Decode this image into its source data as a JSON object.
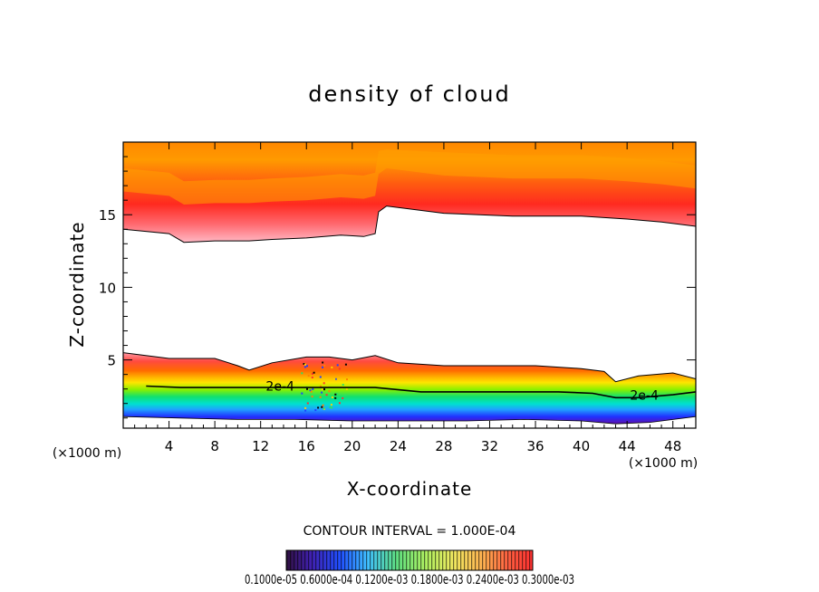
{
  "chart_data": {
    "type": "heatmap",
    "title": "density of cloud",
    "xlabel": "X-coordinate",
    "ylabel": "Z-coordinate",
    "x_unit": "(×1000 m)",
    "y_unit": "(×1000 m)",
    "xlim": [
      0,
      50
    ],
    "ylim": [
      0.3,
      20
    ],
    "x_ticks": [
      4,
      8,
      12,
      16,
      20,
      24,
      28,
      32,
      36,
      40,
      44,
      48
    ],
    "y_ticks": [
      5,
      10,
      15
    ],
    "contour_interval_label": "CONTOUR INTERVAL = 1.000E-04",
    "contour_labels": [
      {
        "text": "2e-4",
        "x": 13.7,
        "z": 3.0
      },
      {
        "text": "2e-4",
        "x": 45.5,
        "z": 2.4
      }
    ],
    "colorbar": {
      "tick_labels_text": "0.1000e-05 0.6000e-04 0.1200e-03 0.1800e-03 0.2400e-03 0.3000e-03",
      "range": [
        1e-06,
        0.0003
      ]
    },
    "upper_cloud_base_profile": [
      [
        0,
        14.0
      ],
      [
        4,
        13.7
      ],
      [
        5.3,
        13.1
      ],
      [
        8,
        13.2
      ],
      [
        11,
        13.2
      ],
      [
        13,
        13.3
      ],
      [
        16,
        13.4
      ],
      [
        19,
        13.6
      ],
      [
        21,
        13.5
      ],
      [
        22,
        13.7
      ],
      [
        22.3,
        15.2
      ],
      [
        23,
        15.6
      ],
      [
        28,
        15.1
      ],
      [
        34,
        14.9
      ],
      [
        40,
        14.9
      ],
      [
        44,
        14.7
      ],
      [
        47,
        14.5
      ],
      [
        50,
        14.2
      ]
    ],
    "lower_cloud_top_profile": [
      [
        0,
        5.5
      ],
      [
        4,
        5.1
      ],
      [
        8,
        5.1
      ],
      [
        10,
        4.6
      ],
      [
        11,
        4.3
      ],
      [
        13,
        4.8
      ],
      [
        16,
        5.2
      ],
      [
        18,
        5.2
      ],
      [
        20,
        5.0
      ],
      [
        22,
        5.3
      ],
      [
        24,
        4.8
      ],
      [
        28,
        4.6
      ],
      [
        32,
        4.6
      ],
      [
        36,
        4.6
      ],
      [
        40,
        4.4
      ],
      [
        42,
        4.2
      ],
      [
        43,
        3.5
      ],
      [
        45,
        3.9
      ],
      [
        48,
        4.1
      ],
      [
        50,
        3.7
      ]
    ],
    "contour_2e4_profile": [
      [
        2,
        3.2
      ],
      [
        5,
        3.1
      ],
      [
        10,
        3.1
      ],
      [
        14,
        3.1
      ],
      [
        18,
        3.1
      ],
      [
        22,
        3.1
      ],
      [
        26,
        2.8
      ],
      [
        30,
        2.8
      ],
      [
        34,
        2.8
      ],
      [
        38,
        2.8
      ],
      [
        41,
        2.7
      ],
      [
        43,
        2.4
      ],
      [
        45,
        2.4
      ],
      [
        48,
        2.6
      ],
      [
        50,
        2.8
      ]
    ],
    "lower_cloud_base_profile": [
      [
        0,
        1.1
      ],
      [
        5,
        1.0
      ],
      [
        10,
        0.9
      ],
      [
        15,
        0.9
      ],
      [
        20,
        0.8
      ],
      [
        25,
        0.8
      ],
      [
        30,
        0.8
      ],
      [
        35,
        0.9
      ],
      [
        40,
        0.8
      ],
      [
        43,
        0.6
      ],
      [
        46,
        0.7
      ],
      [
        50,
        1.1
      ]
    ]
  }
}
